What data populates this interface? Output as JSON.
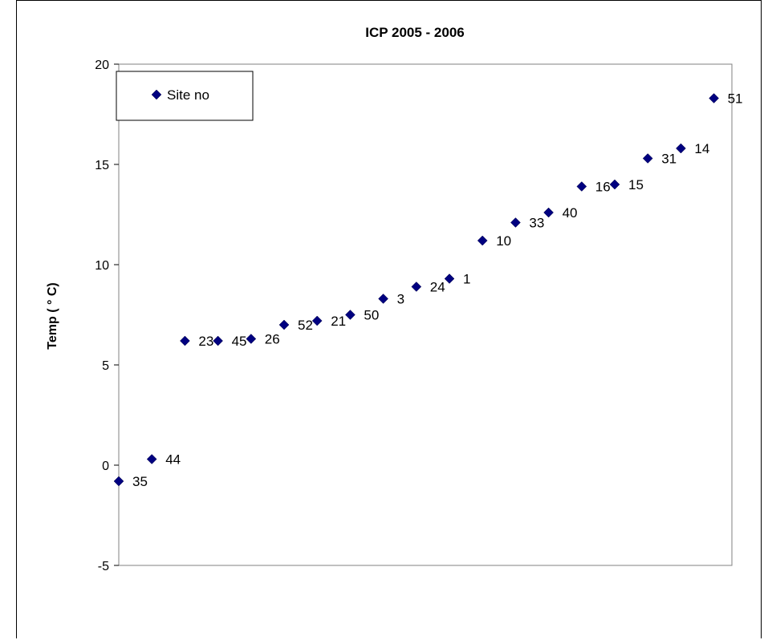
{
  "chart_data": {
    "type": "scatter",
    "title": "ICP 2005 - 2006",
    "xlabel": "",
    "ylabel": "Temp ( ° C)",
    "ylim": [
      -5,
      20
    ],
    "yticks": [
      "20",
      "15",
      "10",
      "5",
      "0",
      "-5"
    ],
    "grid": false,
    "legend": {
      "position": "top-left",
      "entries": [
        "Site no"
      ]
    },
    "marker_color": "#000080",
    "series": [
      {
        "name": "Site no",
        "points": [
          {
            "x": 1,
            "y": -0.8,
            "label": "35"
          },
          {
            "x": 2,
            "y": 0.3,
            "label": "44"
          },
          {
            "x": 3,
            "y": 6.2,
            "label": "23"
          },
          {
            "x": 4,
            "y": 6.2,
            "label": "45"
          },
          {
            "x": 5,
            "y": 6.3,
            "label": "26"
          },
          {
            "x": 6,
            "y": 7.0,
            "label": "52"
          },
          {
            "x": 7,
            "y": 7.2,
            "label": "21"
          },
          {
            "x": 8,
            "y": 7.5,
            "label": "50"
          },
          {
            "x": 9,
            "y": 8.3,
            "label": "3"
          },
          {
            "x": 10,
            "y": 8.9,
            "label": "24"
          },
          {
            "x": 11,
            "y": 9.3,
            "label": "1"
          },
          {
            "x": 12,
            "y": 11.2,
            "label": "10"
          },
          {
            "x": 13,
            "y": 12.1,
            "label": "33"
          },
          {
            "x": 14,
            "y": 12.6,
            "label": "40"
          },
          {
            "x": 15,
            "y": 13.9,
            "label": "16"
          },
          {
            "x": 16,
            "y": 14.0,
            "label": "15"
          },
          {
            "x": 17,
            "y": 15.3,
            "label": "31"
          },
          {
            "x": 18,
            "y": 15.8,
            "label": "14"
          },
          {
            "x": 19,
            "y": 18.3,
            "label": "51"
          }
        ]
      }
    ]
  }
}
